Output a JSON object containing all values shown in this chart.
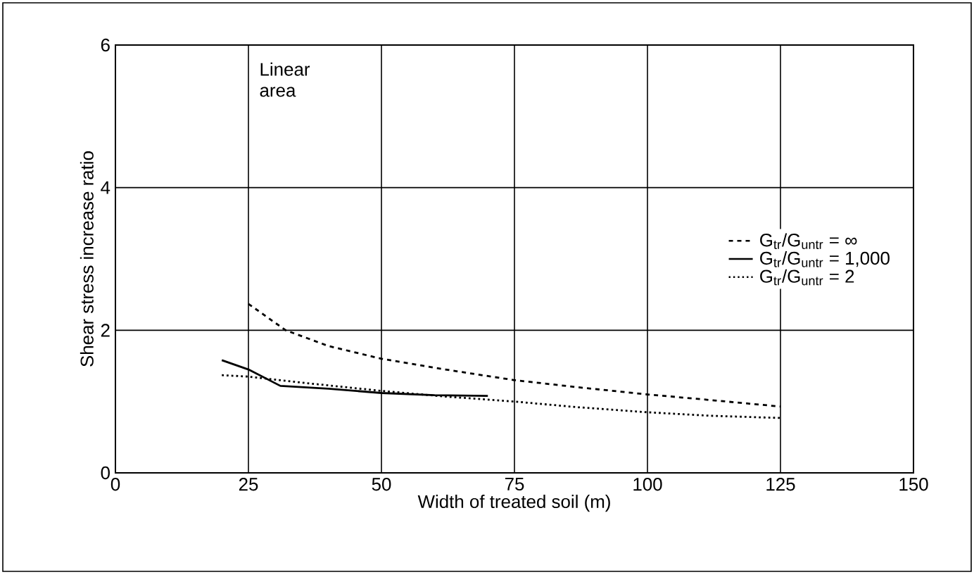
{
  "chart_data": {
    "type": "line",
    "xlabel": "Width of treated soil  (m)",
    "ylabel": "Shear stress increase ratio",
    "xlim": [
      0,
      150
    ],
    "ylim": [
      0,
      6
    ],
    "xticks": [
      0,
      25,
      50,
      75,
      100,
      125,
      150
    ],
    "yticks": [
      0,
      2,
      4,
      6
    ],
    "grid": true,
    "legend": "right",
    "marker": "none",
    "annotations": [
      "Linear area"
    ],
    "series": [
      {
        "name": "G$_{tr}$/G$_{untr}$ = ∞",
        "color": "#000000",
        "line_style": "dashed",
        "x": [
          25,
          32,
          40,
          50,
          62,
          75,
          87,
          100,
          112,
          125
        ],
        "values": [
          2.37,
          2.0,
          1.78,
          1.6,
          1.45,
          1.3,
          1.2,
          1.1,
          1.02,
          0.93
        ]
      },
      {
        "name": "G$_{tr}$/G$_{untr}$ = 1,000",
        "color": "#000000",
        "line_style": "solid",
        "x": [
          20,
          25,
          31,
          40,
          50,
          60,
          70
        ],
        "values": [
          1.58,
          1.45,
          1.22,
          1.18,
          1.12,
          1.09,
          1.08
        ]
      },
      {
        "name": "G$_{tr}$/G$_{untr}$ = 2",
        "color": "#000000",
        "line_style": "dotted",
        "x": [
          20,
          25,
          37,
          50,
          62,
          75,
          87,
          100,
          112,
          125
        ],
        "values": [
          1.37,
          1.35,
          1.25,
          1.15,
          1.07,
          1.0,
          0.92,
          0.85,
          0.8,
          0.77
        ]
      }
    ]
  }
}
